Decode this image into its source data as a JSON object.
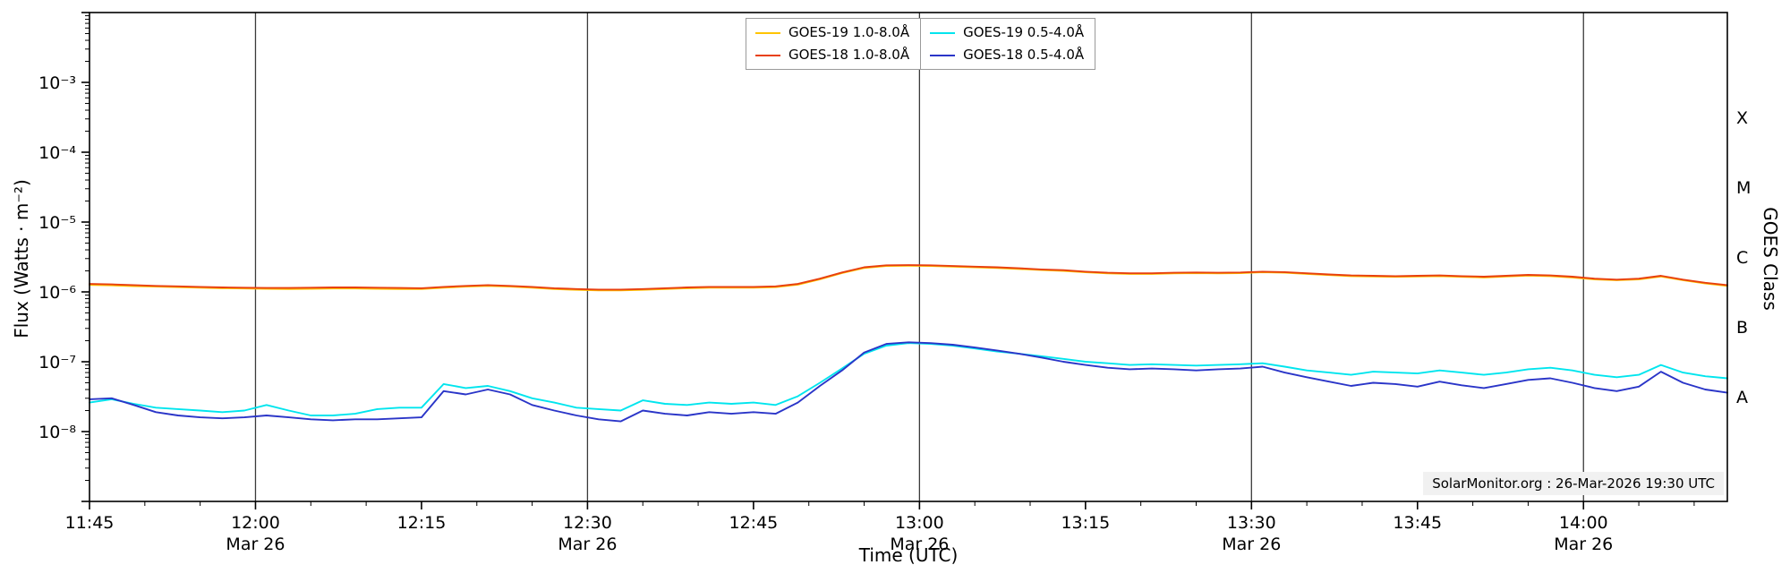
{
  "chart_data": {
    "type": "line",
    "title": "",
    "xlabel": "Time (UTC)",
    "ylabel": "Flux (Watts · m⁻²)",
    "ylabel_right": "GOES Class",
    "watermark": "SolarMonitor.org : 26-Mar-2026 19:30 UTC",
    "x_unit": "minutes after 11:45 UTC on 2026-03-26",
    "x_range": [
      0,
      148
    ],
    "log_y_range": [
      -9,
      -2
    ],
    "grid": "vertical lines at half-hour marks",
    "legend_position": "top-center",
    "x_ticks": [
      {
        "t": 0,
        "label": "11:45"
      },
      {
        "t": 15,
        "label": "12:00",
        "sublabel": "Mar 26",
        "gridline": true
      },
      {
        "t": 30,
        "label": "12:15"
      },
      {
        "t": 45,
        "label": "12:30",
        "sublabel": "Mar 26",
        "gridline": true
      },
      {
        "t": 60,
        "label": "12:45"
      },
      {
        "t": 75,
        "label": "13:00",
        "sublabel": "Mar 26",
        "gridline": true
      },
      {
        "t": 90,
        "label": "13:15"
      },
      {
        "t": 105,
        "label": "13:30",
        "sublabel": "Mar 26",
        "gridline": true
      },
      {
        "t": 120,
        "label": "13:45"
      },
      {
        "t": 135,
        "label": "14:00",
        "sublabel": "Mar 26",
        "gridline": true
      }
    ],
    "y_ticks": [
      {
        "exp": -3,
        "label": "10⁻³"
      },
      {
        "exp": -4,
        "label": "10⁻⁴"
      },
      {
        "exp": -5,
        "label": "10⁻⁵"
      },
      {
        "exp": -6,
        "label": "10⁻⁶"
      },
      {
        "exp": -7,
        "label": "10⁻⁷"
      },
      {
        "exp": -8,
        "label": "10⁻⁸"
      }
    ],
    "class_labels": [
      {
        "exp": -3.5,
        "label": "X"
      },
      {
        "exp": -4.5,
        "label": "M"
      },
      {
        "exp": -5.5,
        "label": "C"
      },
      {
        "exp": -6.5,
        "label": "B"
      },
      {
        "exp": -7.5,
        "label": "A"
      }
    ],
    "legend": {
      "items": [
        {
          "label": "GOES-19 1.0-8.0Å",
          "color": "#ffc400"
        },
        {
          "label": "GOES-18 1.0-8.0Å",
          "color": "#e8400f"
        },
        {
          "label": "GOES-19 0.5-4.0Å",
          "color": "#00e5ee"
        },
        {
          "label": "GOES-18 0.5-4.0Å",
          "color": "#2a35c8"
        }
      ]
    },
    "x": [
      0,
      2,
      4,
      6,
      8,
      10,
      12,
      14,
      16,
      18,
      20,
      22,
      24,
      26,
      28,
      30,
      32,
      34,
      36,
      38,
      40,
      42,
      44,
      46,
      48,
      50,
      52,
      54,
      56,
      58,
      60,
      62,
      64,
      66,
      68,
      70,
      72,
      74,
      76,
      78,
      80,
      82,
      84,
      86,
      88,
      90,
      92,
      94,
      96,
      98,
      100,
      102,
      104,
      106,
      108,
      110,
      112,
      114,
      116,
      118,
      120,
      122,
      124,
      126,
      128,
      130,
      132,
      134,
      136,
      138,
      140,
      142,
      144,
      146,
      148
    ],
    "series": [
      {
        "id": "goes19-long",
        "name": "GOES-19 1.0-8.0Å",
        "color": "#ffc400",
        "values": [
          1.26e-06,
          1.24e-06,
          1.21e-06,
          1.19e-06,
          1.17e-06,
          1.15e-06,
          1.13e-06,
          1.12e-06,
          1.11e-06,
          1.1e-06,
          1.11e-06,
          1.12e-06,
          1.12e-06,
          1.11e-06,
          1.1e-06,
          1.1e-06,
          1.15e-06,
          1.19e-06,
          1.22e-06,
          1.19e-06,
          1.15e-06,
          1.1e-06,
          1.07e-06,
          1.05e-06,
          1.05e-06,
          1.07e-06,
          1.1e-06,
          1.13e-06,
          1.15e-06,
          1.15e-06,
          1.15e-06,
          1.17e-06,
          1.27e-06,
          1.51e-06,
          1.86e-06,
          2.2e-06,
          2.35e-06,
          2.37e-06,
          2.35e-06,
          2.3e-06,
          2.25e-06,
          2.2e-06,
          2.13e-06,
          2.06e-06,
          2e-06,
          1.91e-06,
          1.84e-06,
          1.81e-06,
          1.81e-06,
          1.84e-06,
          1.86e-06,
          1.84e-06,
          1.86e-06,
          1.91e-06,
          1.88e-06,
          1.81e-06,
          1.74e-06,
          1.68e-06,
          1.66e-06,
          1.64e-06,
          1.66e-06,
          1.68e-06,
          1.64e-06,
          1.61e-06,
          1.66e-06,
          1.71e-06,
          1.68e-06,
          1.61e-06,
          1.51e-06,
          1.47e-06,
          1.51e-06,
          1.66e-06,
          1.47e-06,
          1.32e-06,
          1.22e-06
        ]
      },
      {
        "id": "goes18-long",
        "name": "GOES-18 1.0-8.0Å",
        "color": "#e8400f",
        "values": [
          1.3e-06,
          1.28e-06,
          1.25e-06,
          1.22e-06,
          1.2e-06,
          1.18e-06,
          1.16e-06,
          1.15e-06,
          1.14e-06,
          1.14e-06,
          1.15e-06,
          1.16e-06,
          1.16e-06,
          1.15e-06,
          1.14e-06,
          1.13e-06,
          1.18e-06,
          1.22e-06,
          1.25e-06,
          1.22e-06,
          1.18e-06,
          1.13e-06,
          1.1e-06,
          1.08e-06,
          1.08e-06,
          1.1e-06,
          1.13e-06,
          1.16e-06,
          1.18e-06,
          1.18e-06,
          1.18e-06,
          1.2e-06,
          1.3e-06,
          1.55e-06,
          1.9e-06,
          2.25e-06,
          2.4e-06,
          2.42e-06,
          2.4e-06,
          2.35e-06,
          2.3e-06,
          2.25e-06,
          2.18e-06,
          2.1e-06,
          2.05e-06,
          1.95e-06,
          1.88e-06,
          1.85e-06,
          1.85e-06,
          1.88e-06,
          1.9e-06,
          1.88e-06,
          1.9e-06,
          1.95e-06,
          1.92e-06,
          1.85e-06,
          1.78e-06,
          1.72e-06,
          1.7e-06,
          1.68e-06,
          1.7e-06,
          1.72e-06,
          1.68e-06,
          1.65e-06,
          1.7e-06,
          1.75e-06,
          1.72e-06,
          1.65e-06,
          1.55e-06,
          1.5e-06,
          1.55e-06,
          1.7e-06,
          1.5e-06,
          1.35e-06,
          1.25e-06
        ]
      },
      {
        "id": "goes19-short",
        "name": "GOES-19 0.5-4.0Å",
        "color": "#00e5ee",
        "values": [
          2.6e-08,
          2.9e-08,
          2.5e-08,
          2.2e-08,
          2.1e-08,
          2e-08,
          1.9e-08,
          2e-08,
          2.4e-08,
          2e-08,
          1.7e-08,
          1.7e-08,
          1.8e-08,
          2.1e-08,
          2.2e-08,
          2.2e-08,
          4.8e-08,
          4.2e-08,
          4.5e-08,
          3.8e-08,
          3e-08,
          2.6e-08,
          2.2e-08,
          2.1e-08,
          2e-08,
          2.8e-08,
          2.5e-08,
          2.4e-08,
          2.6e-08,
          2.5e-08,
          2.6e-08,
          2.4e-08,
          3.2e-08,
          5e-08,
          8e-08,
          1.3e-07,
          1.7e-07,
          1.85e-07,
          1.8e-07,
          1.7e-07,
          1.55e-07,
          1.4e-07,
          1.3e-07,
          1.2e-07,
          1.1e-07,
          1e-07,
          9.5e-08,
          9e-08,
          9.2e-08,
          9e-08,
          8.8e-08,
          9e-08,
          9.2e-08,
          9.5e-08,
          8.5e-08,
          7.5e-08,
          7e-08,
          6.5e-08,
          7.2e-08,
          7e-08,
          6.8e-08,
          7.5e-08,
          7e-08,
          6.5e-08,
          7e-08,
          7.8e-08,
          8.2e-08,
          7.5e-08,
          6.5e-08,
          6e-08,
          6.5e-08,
          9e-08,
          7e-08,
          6.2e-08,
          5.8e-08
        ]
      },
      {
        "id": "goes18-short",
        "name": "GOES-18 0.5-4.0Å",
        "color": "#2a35c8",
        "values": [
          2.9e-08,
          3e-08,
          2.4e-08,
          1.9e-08,
          1.7e-08,
          1.6e-08,
          1.55e-08,
          1.6e-08,
          1.7e-08,
          1.6e-08,
          1.5e-08,
          1.45e-08,
          1.5e-08,
          1.5e-08,
          1.55e-08,
          1.6e-08,
          3.8e-08,
          3.4e-08,
          4e-08,
          3.4e-08,
          2.4e-08,
          2e-08,
          1.7e-08,
          1.5e-08,
          1.4e-08,
          2e-08,
          1.8e-08,
          1.7e-08,
          1.9e-08,
          1.8e-08,
          1.9e-08,
          1.8e-08,
          2.6e-08,
          4.5e-08,
          7.5e-08,
          1.35e-07,
          1.8e-07,
          1.9e-07,
          1.85e-07,
          1.75e-07,
          1.6e-07,
          1.45e-07,
          1.3e-07,
          1.15e-07,
          1e-07,
          9e-08,
          8.2e-08,
          7.8e-08,
          8e-08,
          7.8e-08,
          7.5e-08,
          7.8e-08,
          8e-08,
          8.5e-08,
          7e-08,
          6e-08,
          5.2e-08,
          4.5e-08,
          5e-08,
          4.8e-08,
          4.4e-08,
          5.2e-08,
          4.6e-08,
          4.2e-08,
          4.8e-08,
          5.5e-08,
          5.8e-08,
          5e-08,
          4.2e-08,
          3.8e-08,
          4.4e-08,
          7.2e-08,
          5e-08,
          4e-08,
          3.6e-08
        ]
      }
    ]
  }
}
